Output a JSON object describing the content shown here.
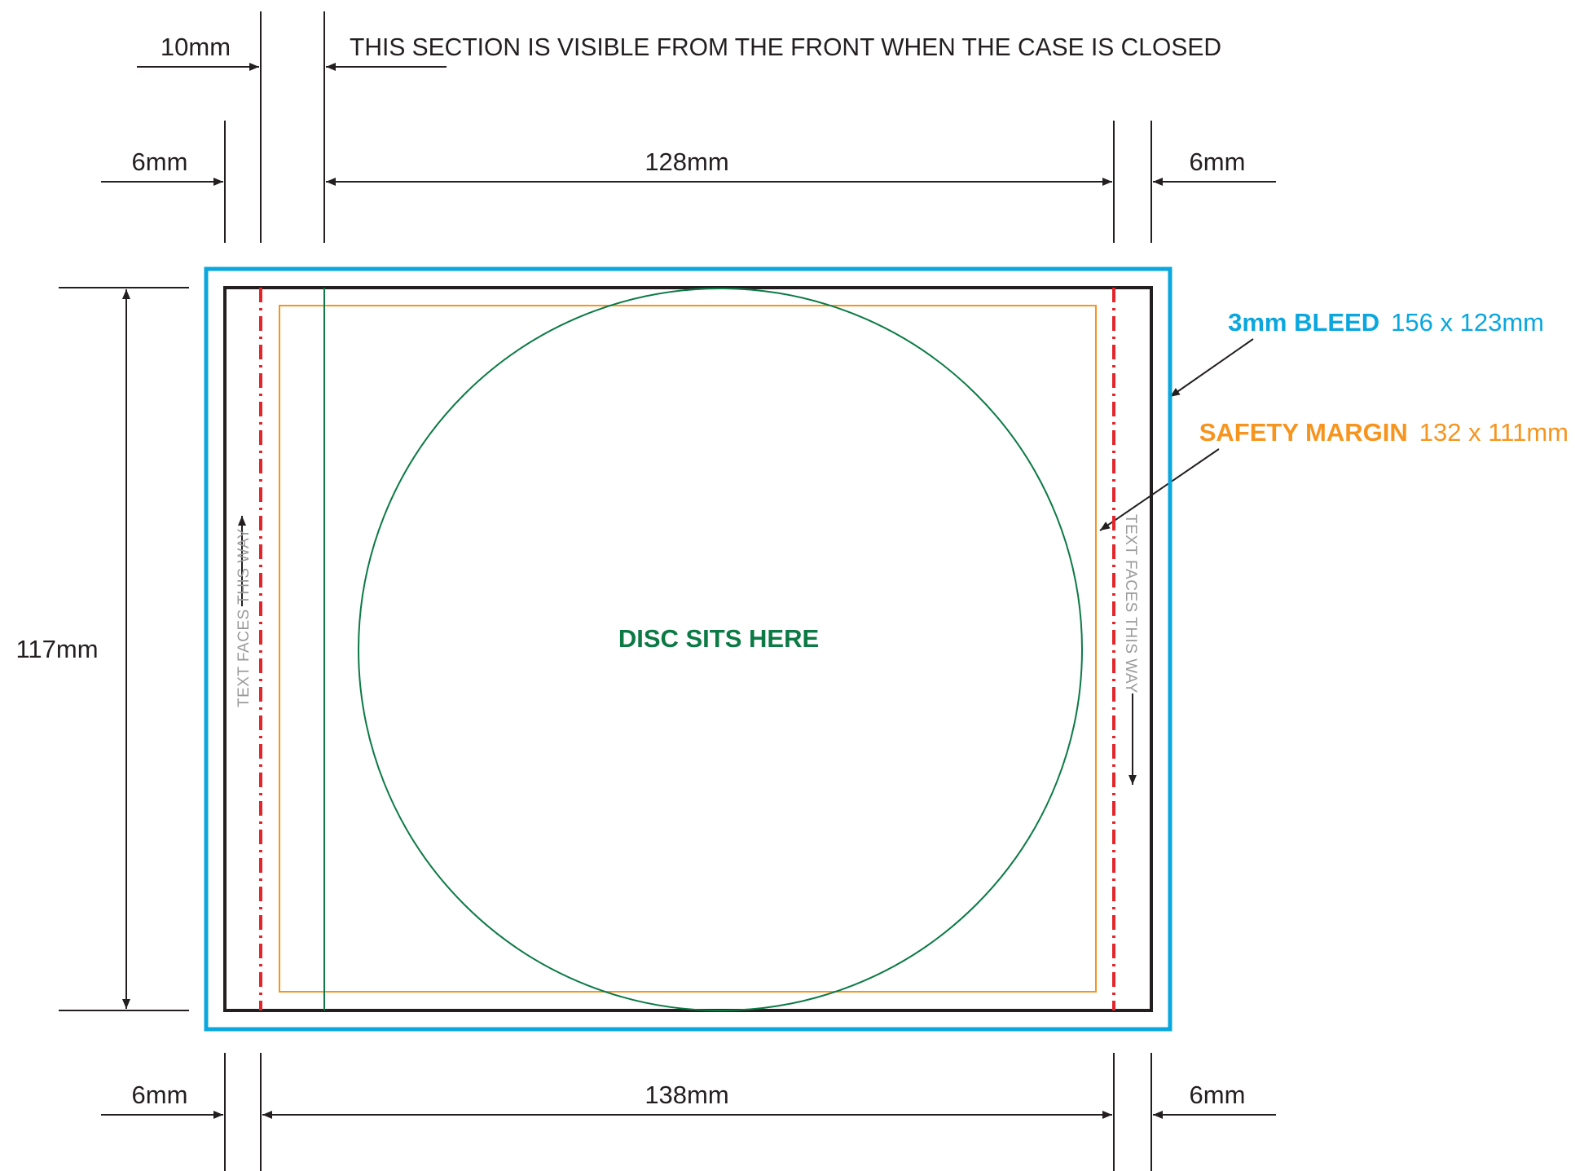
{
  "colors": {
    "bleed": "#0aa7df",
    "safety": "#f7941d",
    "trim": "#231f20",
    "disc": "#0b7a45",
    "fold": "#e3262b",
    "dim_line": "#231f20"
  },
  "labels": {
    "top_note": "THIS SECTION IS VISIBLE FROM THE FRONT WHEN THE CASE IS CLOSED",
    "top_10mm": "10mm",
    "top_left_6mm": "6mm",
    "top_128mm": "128mm",
    "top_right_6mm": "6mm",
    "left_117mm": "117mm",
    "bottom_left_6mm": "6mm",
    "bottom_138mm": "138mm",
    "bottom_right_6mm": "6mm",
    "bleed_strong": "3mm BLEED",
    "bleed_size": "156 x 123mm",
    "safety_strong": "SAFETY MARGIN",
    "safety_size": "132 x 111mm",
    "disc": "DISC SITS HERE",
    "text_faces_left": "TEXT FACES THIS WAY",
    "text_faces_right": "TEXT FACES THIS WAY"
  }
}
